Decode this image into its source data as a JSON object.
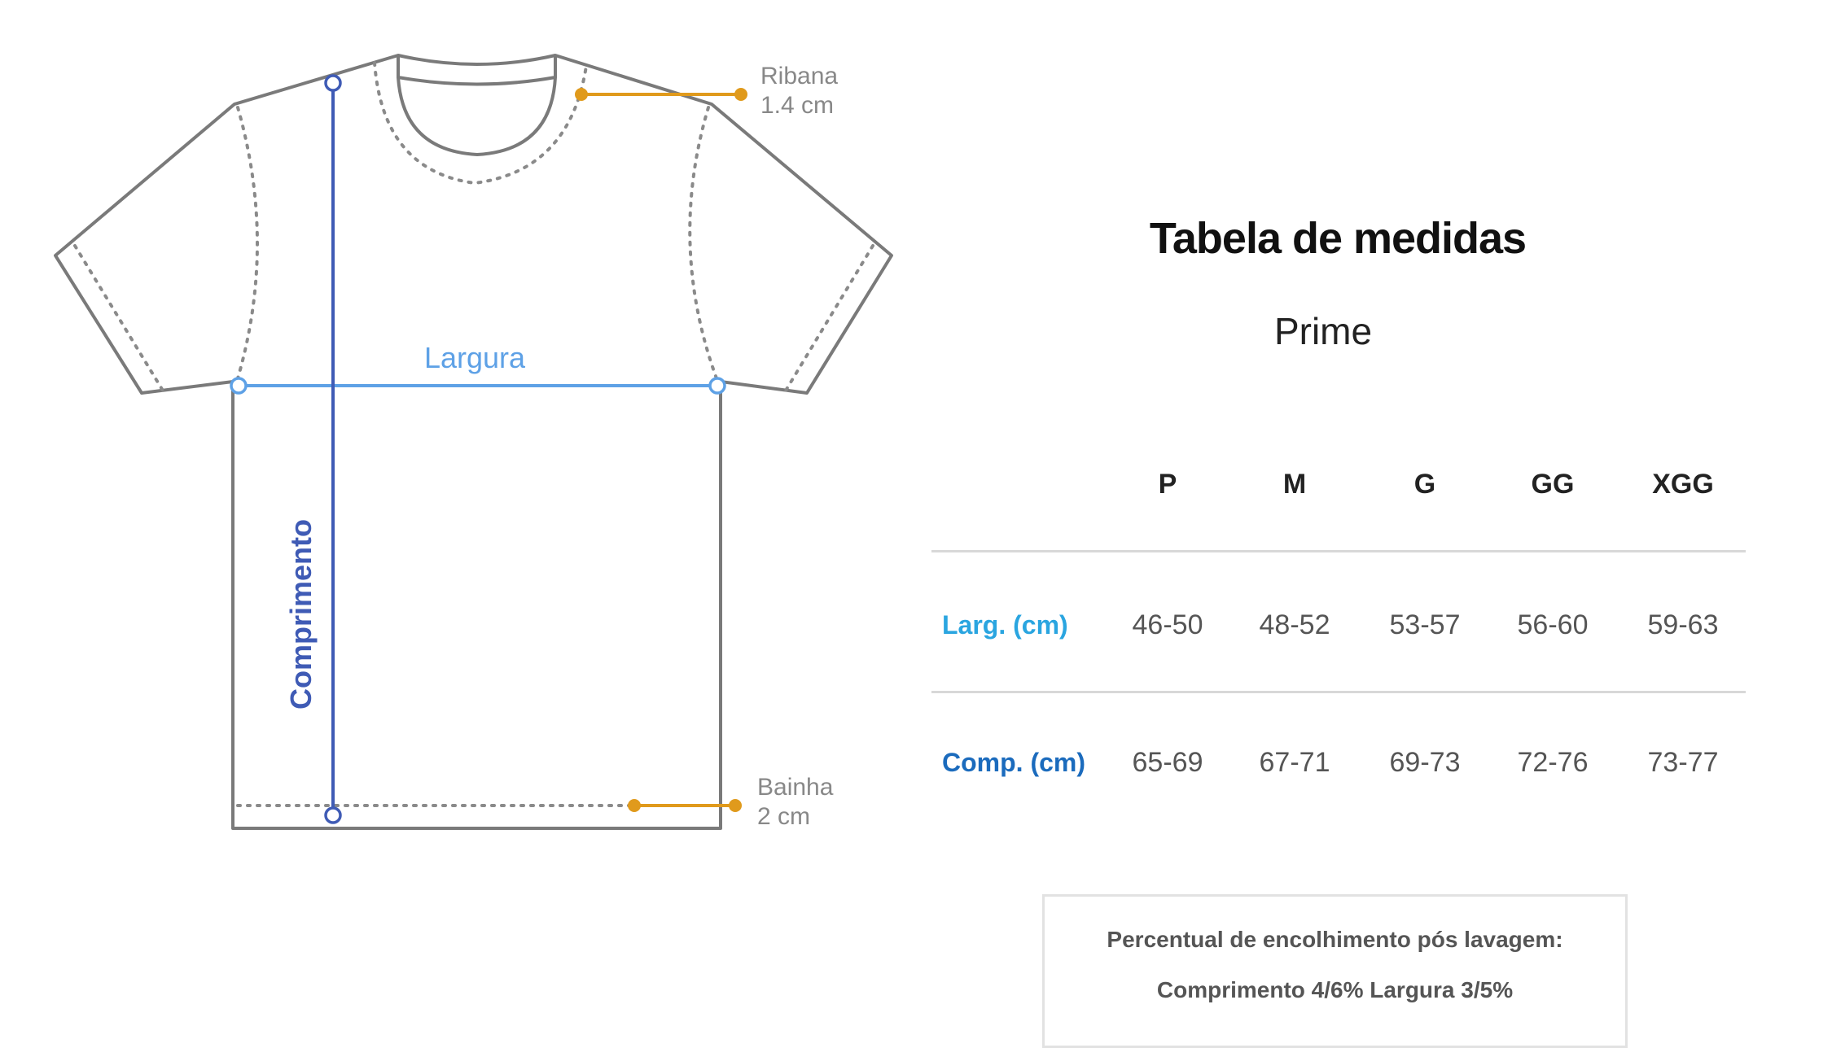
{
  "diagram": {
    "width_label": "Largura",
    "length_label": "Comprimento",
    "collar": {
      "name": "Ribana",
      "value": "1.4 cm"
    },
    "hem": {
      "name": "Bainha",
      "value": "2 cm"
    },
    "colors": {
      "outline": "#7a7a7a",
      "width_line": "#5ea1e6",
      "length_line": "#3f5bb5",
      "detail_line": "#e09a1c"
    }
  },
  "table": {
    "title": "Tabela de medidas",
    "subtitle": "Prime",
    "sizes": [
      "P",
      "M",
      "G",
      "GG",
      "XGG"
    ],
    "rows": [
      {
        "label": "Larg. (cm)",
        "color": "#2aa5e0",
        "values": [
          "46-50",
          "48-52",
          "53-57",
          "56-60",
          "59-63"
        ]
      },
      {
        "label": "Comp. (cm)",
        "color": "#1b6bbd",
        "values": [
          "65-69",
          "67-71",
          "69-73",
          "72-76",
          "73-77"
        ]
      }
    ],
    "note": {
      "line1": "Percentual de encolhimento pós lavagem:",
      "line2": "Comprimento 4/6% Largura 3/5%"
    }
  }
}
